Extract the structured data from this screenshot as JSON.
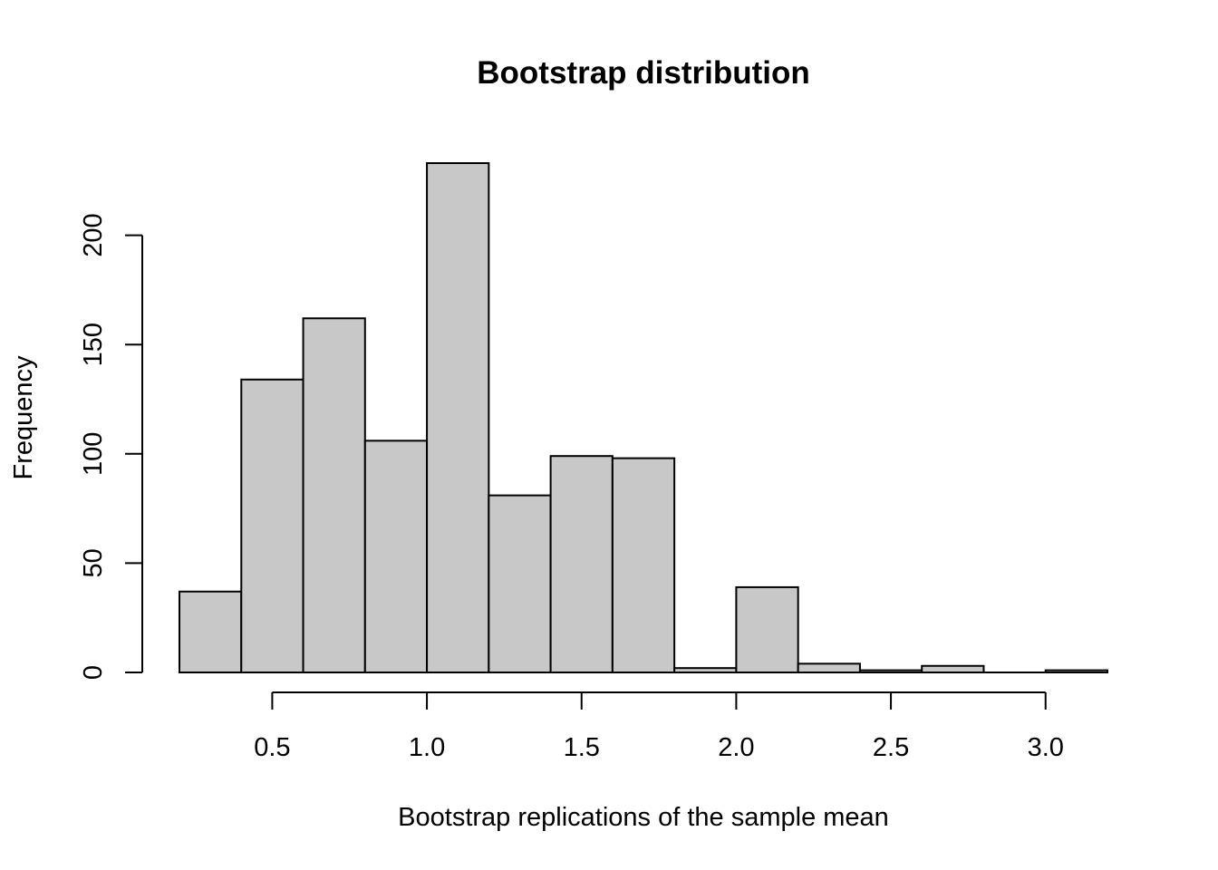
{
  "chart_data": {
    "type": "bar",
    "title": "Bootstrap distribution",
    "xlabel": "Bootstrap replications of the sample mean",
    "ylabel": "Frequency",
    "bins": [
      {
        "from": 0.2,
        "to": 0.4,
        "count": 37
      },
      {
        "from": 0.4,
        "to": 0.6,
        "count": 134
      },
      {
        "from": 0.6,
        "to": 0.8,
        "count": 162
      },
      {
        "from": 0.8,
        "to": 1.0,
        "count": 106
      },
      {
        "from": 1.0,
        "to": 1.2,
        "count": 233
      },
      {
        "from": 1.2,
        "to": 1.4,
        "count": 81
      },
      {
        "from": 1.4,
        "to": 1.6,
        "count": 99
      },
      {
        "from": 1.6,
        "to": 1.8,
        "count": 98
      },
      {
        "from": 1.8,
        "to": 2.0,
        "count": 2
      },
      {
        "from": 2.0,
        "to": 2.2,
        "count": 39
      },
      {
        "from": 2.2,
        "to": 2.4,
        "count": 4
      },
      {
        "from": 2.4,
        "to": 2.6,
        "count": 1
      },
      {
        "from": 2.6,
        "to": 2.8,
        "count": 3
      },
      {
        "from": 2.8,
        "to": 3.0,
        "count": 0
      },
      {
        "from": 3.0,
        "to": 3.2,
        "count": 1
      }
    ],
    "xticks": [
      0.5,
      1.0,
      1.5,
      2.0,
      2.5,
      3.0
    ],
    "xtick_labels": [
      "0.5",
      "1.0",
      "1.5",
      "2.0",
      "2.5",
      "3.0"
    ],
    "yticks": [
      0,
      50,
      100,
      150,
      200
    ],
    "ytick_labels": [
      "0",
      "50",
      "100",
      "150",
      "200"
    ],
    "xlim": [
      0.2,
      3.2
    ],
    "ylim": [
      0,
      233
    ],
    "grid": false,
    "bar_color": "#c8c8c8",
    "edge_color": "#000000"
  }
}
